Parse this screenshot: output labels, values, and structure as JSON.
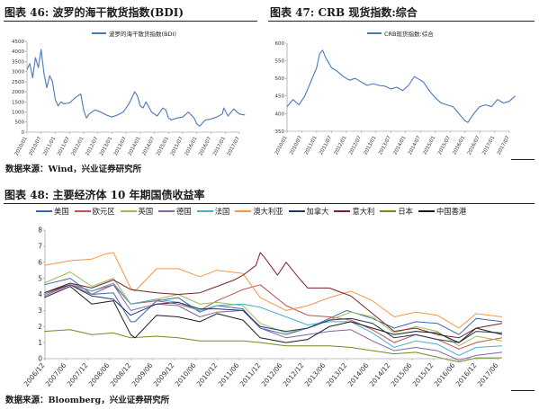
{
  "panel46": {
    "title": "图表 46:  波罗的海干散货指数(BDI)",
    "legend": "波罗的海干散货指数(BDI)"
  },
  "panel47": {
    "title": "图表 47:  CRB 现货指数:综合",
    "legend": "CRB现货指数:综合"
  },
  "source_top": "数据来源：Wind，兴业证券研究所",
  "panel48": {
    "title": "图表 48:  主要经济体 10 年期国债收益率"
  },
  "source_bottom": "数据来源：Bloomberg，兴业证券研究所",
  "chart_data": [
    {
      "id": "bdi",
      "type": "line",
      "title": "波罗的海干散货指数(BDI)",
      "ylim": [
        0,
        4500
      ],
      "yticks": [
        0,
        500,
        1000,
        1500,
        2000,
        2500,
        3000,
        3500,
        4000,
        4500
      ],
      "xticks": [
        "2010/01",
        "2010/07",
        "2011/01",
        "2011/07",
        "2012/01",
        "2012/07",
        "2013/01",
        "2013/07",
        "2014/01",
        "2014/07",
        "2015/01",
        "2015/07",
        "2016/01",
        "2016/07",
        "2017/01",
        "2017/07"
      ],
      "series": [
        {
          "name": "波罗的海干散货指数(BDI)",
          "color": "#4a78b9",
          "x": [
            2010.0,
            2010.1,
            2010.2,
            2010.3,
            2010.4,
            2010.5,
            2010.6,
            2010.7,
            2010.8,
            2010.9,
            2011.0,
            2011.1,
            2011.2,
            2011.3,
            2011.5,
            2011.7,
            2011.9,
            2012.0,
            2012.1,
            2012.2,
            2012.4,
            2012.6,
            2012.8,
            2013.0,
            2013.2,
            2013.4,
            2013.6,
            2013.8,
            2013.9,
            2014.0,
            2014.1,
            2014.2,
            2014.4,
            2014.6,
            2014.8,
            2014.9,
            2015.0,
            2015.1,
            2015.3,
            2015.5,
            2015.7,
            2015.9,
            2016.0,
            2016.1,
            2016.3,
            2016.5,
            2016.7,
            2016.9,
            2016.95,
            2017.1,
            2017.3,
            2017.5,
            2017.7
          ],
          "y": [
            3100,
            3400,
            2700,
            3700,
            3200,
            4100,
            2900,
            2200,
            2800,
            2500,
            1600,
            1300,
            1500,
            1400,
            1450,
            1700,
            1900,
            1100,
            700,
            900,
            1100,
            1000,
            850,
            750,
            850,
            1000,
            1400,
            2000,
            1800,
            1300,
            1200,
            1500,
            1000,
            800,
            1200,
            1100,
            700,
            600,
            700,
            750,
            1000,
            700,
            400,
            300,
            600,
            650,
            750,
            900,
            1200,
            800,
            1150,
            900,
            850
          ]
        }
      ]
    },
    {
      "id": "crb",
      "type": "line",
      "title": "CRB现货指数:综合",
      "ylim": [
        350,
        600
      ],
      "yticks": [
        350,
        400,
        450,
        500,
        550,
        600
      ],
      "xticks": [
        "2010/01",
        "2010/07",
        "2011/01",
        "2011/07",
        "2012/01",
        "2012/07",
        "2013/01",
        "2013/07",
        "2014/01",
        "2014/07",
        "2015/01",
        "2015/07",
        "2016/01",
        "2016/07",
        "2017/01",
        "2017/07"
      ],
      "series": [
        {
          "name": "CRB现货指数:综合",
          "color": "#4a78b9",
          "x": [
            2010.0,
            2010.2,
            2010.4,
            2010.6,
            2010.8,
            2011.0,
            2011.1,
            2011.2,
            2011.3,
            2011.5,
            2011.7,
            2011.9,
            2012.1,
            2012.3,
            2012.5,
            2012.7,
            2012.9,
            2013.1,
            2013.3,
            2013.5,
            2013.7,
            2013.9,
            2014.1,
            2014.3,
            2014.4,
            2014.6,
            2014.8,
            2015.0,
            2015.2,
            2015.4,
            2015.6,
            2015.8,
            2016.0,
            2016.1,
            2016.3,
            2016.5,
            2016.7,
            2016.9,
            2017.1,
            2017.3,
            2017.5,
            2017.7
          ],
          "y": [
            420,
            440,
            425,
            450,
            490,
            530,
            570,
            580,
            560,
            530,
            520,
            505,
            495,
            500,
            490,
            480,
            485,
            480,
            478,
            470,
            475,
            465,
            480,
            505,
            500,
            490,
            465,
            445,
            430,
            425,
            420,
            400,
            380,
            375,
            400,
            420,
            425,
            420,
            440,
            430,
            435,
            450
          ]
        }
      ]
    },
    {
      "id": "bond10y",
      "type": "line",
      "title": "主要经济体 10 年期国债收益率",
      "ylim": [
        0,
        8
      ],
      "yticks": [
        0,
        1,
        2,
        3,
        4,
        5,
        6,
        7,
        8
      ],
      "xticks": [
        "2006/12",
        "2007/06",
        "2007/12",
        "2008/06",
        "2008/12",
        "2009/06",
        "2009/12",
        "2010/06",
        "2010/12",
        "2011/06",
        "2011/12",
        "2012/06",
        "2012/12",
        "2013/06",
        "2013/12",
        "2014/06",
        "2014/12",
        "2015/06",
        "2015/12",
        "2016/06",
        "2016/12",
        "2017/06"
      ],
      "series": [
        {
          "name": "美国",
          "color": "#3a68b0",
          "x": [
            2006.9,
            2007.5,
            2008.0,
            2008.5,
            2008.9,
            2009.0,
            2009.5,
            2010.0,
            2010.5,
            2010.9,
            2011.5,
            2011.9,
            2012.5,
            2013.0,
            2013.5,
            2013.9,
            2014.5,
            2015.0,
            2015.5,
            2016.0,
            2016.5,
            2016.9,
            2017.5
          ],
          "y": [
            4.6,
            5.0,
            4.0,
            4.1,
            2.3,
            2.3,
            3.6,
            3.8,
            2.9,
            3.3,
            3.1,
            1.9,
            1.5,
            1.9,
            2.5,
            3.0,
            2.5,
            1.9,
            2.3,
            2.2,
            1.5,
            2.5,
            2.3
          ]
        },
        {
          "name": "欧元区",
          "color": "#c0504d",
          "x": [
            2006.9,
            2007.5,
            2008.0,
            2008.5,
            2008.9,
            2009.5,
            2010.0,
            2010.5,
            2010.9,
            2011.5,
            2011.9,
            2012.5,
            2013.0,
            2013.5,
            2014.0,
            2014.5,
            2015.0,
            2015.5,
            2016.0,
            2016.5,
            2016.9,
            2017.5
          ],
          "y": [
            4.0,
            4.6,
            4.2,
            4.6,
            3.4,
            3.6,
            3.4,
            3.0,
            3.6,
            4.3,
            4.6,
            3.3,
            2.7,
            2.6,
            2.4,
            1.8,
            1.0,
            1.5,
            1.2,
            0.6,
            1.0,
            1.3
          ]
        },
        {
          "name": "英国",
          "color": "#9bbb59",
          "x": [
            2006.9,
            2007.5,
            2008.0,
            2008.5,
            2008.9,
            2009.5,
            2010.0,
            2010.5,
            2010.9,
            2011.5,
            2011.9,
            2012.5,
            2013.0,
            2013.5,
            2014.0,
            2014.5,
            2015.0,
            2015.5,
            2016.0,
            2016.5,
            2016.9,
            2017.5
          ],
          "y": [
            4.7,
            5.4,
            4.5,
            5.0,
            3.4,
            3.7,
            4.0,
            3.4,
            3.5,
            3.3,
            2.2,
            1.6,
            1.9,
            2.4,
            2.9,
            2.6,
            1.6,
            2.0,
            1.7,
            0.8,
            1.4,
            1.1
          ]
        },
        {
          "name": "德国",
          "color": "#8064a2",
          "x": [
            2006.9,
            2007.5,
            2008.0,
            2008.5,
            2008.9,
            2009.5,
            2010.0,
            2010.5,
            2010.9,
            2011.5,
            2011.9,
            2012.5,
            2013.0,
            2013.5,
            2014.0,
            2014.5,
            2015.0,
            2015.5,
            2016.0,
            2016.5,
            2016.9,
            2017.5
          ],
          "y": [
            3.9,
            4.6,
            4.0,
            4.6,
            3.0,
            3.4,
            3.3,
            2.6,
            2.9,
            3.0,
            1.9,
            1.3,
            1.5,
            1.7,
            1.8,
            1.1,
            0.5,
            0.7,
            0.5,
            -0.1,
            0.2,
            0.4
          ]
        },
        {
          "name": "法国",
          "color": "#4bacc6",
          "x": [
            2006.9,
            2007.5,
            2008.0,
            2008.5,
            2008.9,
            2009.5,
            2010.0,
            2010.5,
            2010.9,
            2011.5,
            2011.9,
            2012.5,
            2013.0,
            2013.5,
            2014.0,
            2014.5,
            2015.0,
            2015.5,
            2016.0,
            2016.5,
            2016.9,
            2017.5
          ],
          "y": [
            4.0,
            4.7,
            4.2,
            4.7,
            3.4,
            3.7,
            3.5,
            3.0,
            3.3,
            3.4,
            3.2,
            2.6,
            2.1,
            2.3,
            2.3,
            1.6,
            0.7,
            1.1,
            0.9,
            0.2,
            0.7,
            0.8
          ]
        },
        {
          "name": "澳大利亚",
          "color": "#f79646",
          "x": [
            2006.9,
            2007.5,
            2008.0,
            2008.3,
            2008.5,
            2008.9,
            2009.0,
            2009.5,
            2010.0,
            2010.5,
            2010.9,
            2011.5,
            2011.9,
            2012.5,
            2013.0,
            2013.5,
            2014.0,
            2014.5,
            2015.0,
            2015.5,
            2016.0,
            2016.5,
            2016.9,
            2017.5
          ],
          "y": [
            5.8,
            6.1,
            6.2,
            6.5,
            6.6,
            4.4,
            4.2,
            5.6,
            5.6,
            5.1,
            5.5,
            5.3,
            3.8,
            3.0,
            3.3,
            3.8,
            4.2,
            3.6,
            2.6,
            2.9,
            2.7,
            1.9,
            2.8,
            2.6
          ]
        },
        {
          "name": "加拿大",
          "color": "#1f3864",
          "x": [
            2006.9,
            2007.5,
            2008.0,
            2008.5,
            2008.9,
            2009.5,
            2010.0,
            2010.5,
            2010.9,
            2011.5,
            2011.9,
            2012.5,
            2013.0,
            2013.5,
            2014.0,
            2014.5,
            2015.0,
            2015.5,
            2016.0,
            2016.5,
            2016.9,
            2017.5
          ],
          "y": [
            4.1,
            4.6,
            3.9,
            3.7,
            2.7,
            3.4,
            3.5,
            3.1,
            3.1,
            3.0,
            2.0,
            1.7,
            1.9,
            2.4,
            2.5,
            2.2,
            1.3,
            1.5,
            1.2,
            1.0,
            1.7,
            1.6
          ]
        },
        {
          "name": "意大利",
          "color": "#7b1f2a",
          "x": [
            2006.9,
            2007.5,
            2008.0,
            2008.5,
            2008.9,
            2009.5,
            2010.0,
            2010.5,
            2010.9,
            2011.3,
            2011.5,
            2011.8,
            2011.9,
            2012.0,
            2012.3,
            2012.5,
            2012.8,
            2013.0,
            2013.5,
            2014.0,
            2014.5,
            2015.0,
            2015.5,
            2016.0,
            2016.5,
            2016.9,
            2017.5
          ],
          "y": [
            4.1,
            4.7,
            4.4,
            4.9,
            4.3,
            4.1,
            4.0,
            4.1,
            4.5,
            4.9,
            5.2,
            5.8,
            6.6,
            6.3,
            5.2,
            6.0,
            5.0,
            4.4,
            4.4,
            3.9,
            2.8,
            1.7,
            1.9,
            1.5,
            1.3,
            1.9,
            2.2
          ]
        },
        {
          "name": "日本",
          "color": "#6b8e23",
          "x": [
            2006.9,
            2007.5,
            2008.0,
            2008.5,
            2008.9,
            2009.5,
            2010.0,
            2010.5,
            2010.9,
            2011.5,
            2011.9,
            2012.5,
            2013.0,
            2013.5,
            2014.0,
            2014.5,
            2015.0,
            2015.5,
            2016.0,
            2016.3,
            2016.5,
            2016.9,
            2017.5
          ],
          "y": [
            1.7,
            1.8,
            1.5,
            1.6,
            1.3,
            1.4,
            1.3,
            1.1,
            1.1,
            1.1,
            1.0,
            0.8,
            0.8,
            0.8,
            0.7,
            0.5,
            0.3,
            0.4,
            0.1,
            -0.1,
            -0.2,
            0.05,
            0.05
          ]
        },
        {
          "name": "中国香港",
          "color": "#1a1a1a",
          "x": [
            2006.9,
            2007.5,
            2008.0,
            2008.5,
            2008.9,
            2009.0,
            2009.5,
            2010.0,
            2010.5,
            2010.9,
            2011.5,
            2011.9,
            2012.5,
            2013.0,
            2013.5,
            2014.0,
            2014.5,
            2015.0,
            2015.5,
            2016.0,
            2016.5,
            2016.9,
            2017.5
          ],
          "y": [
            3.8,
            4.5,
            3.4,
            3.6,
            1.5,
            1.3,
            2.7,
            2.6,
            2.3,
            2.8,
            2.4,
            1.3,
            1.0,
            1.2,
            2.0,
            2.3,
            1.9,
            1.5,
            1.7,
            1.6,
            1.0,
            1.9,
            1.5
          ]
        }
      ]
    }
  ]
}
